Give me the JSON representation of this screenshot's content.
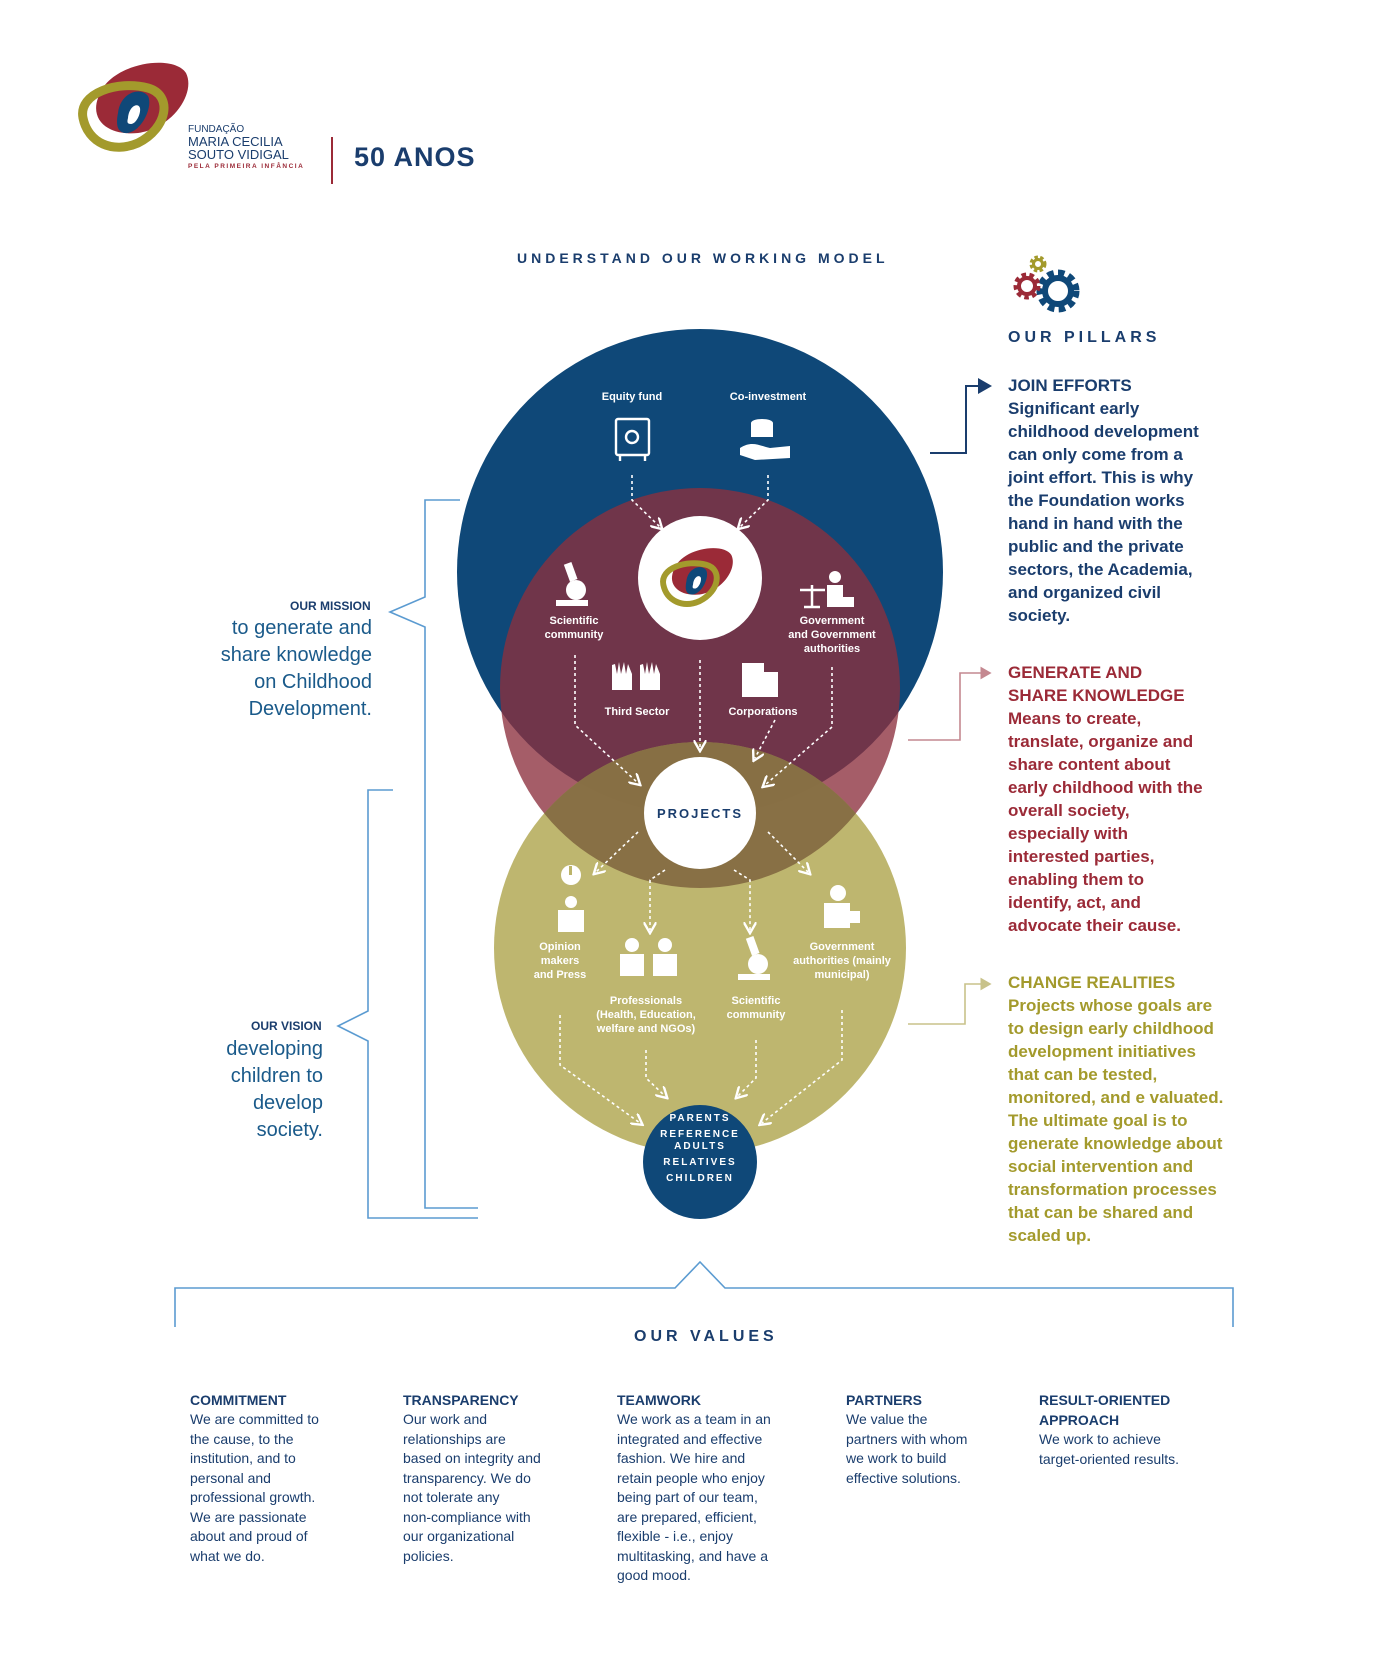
{
  "header": {
    "org_line1": "FUNDAÇÃO",
    "org_line2": "MARIA CECILIA",
    "org_line3": "SOUTO VIDIGAL",
    "org_tagline": "PELA PRIMEIRA INFÂNCIA",
    "anniversary": "50 ANOS"
  },
  "diagram": {
    "title": "UNDERSTAND OUR WORKING MODEL",
    "top_nodes": [
      "Equity fund",
      "Co-investment"
    ],
    "middle_nodes": {
      "scientific": [
        "Scientific",
        "community"
      ],
      "government": [
        "Government",
        "and Government",
        "authorities"
      ],
      "third_sector": "Third Sector",
      "corporations": "Corporations"
    },
    "center": "PROJECTS",
    "bottom_nodes": {
      "opinion": [
        "Opinion",
        "makers",
        "and Press"
      ],
      "professionals": [
        "Professionals",
        "(Health, Education,",
        "welfare and NGOs)"
      ],
      "scientific": [
        "Scientific",
        "community"
      ],
      "government": [
        "Government",
        "authorities (mainly",
        "municipal)"
      ]
    },
    "beneficiaries": [
      "PARENTS",
      "REFERENCE",
      "ADULTS",
      "RELATIVES",
      "CHILDREN"
    ]
  },
  "mission": {
    "heading": "OUR MISSION",
    "text": [
      "to generate and",
      "share knowledge",
      "on Childhood",
      "Development."
    ]
  },
  "vision": {
    "heading": "OUR VISION",
    "text": [
      "developing",
      "children to",
      "develop",
      "society."
    ]
  },
  "pillars": {
    "heading": "OUR PILLARS",
    "items": [
      {
        "title": "JOIN EFFORTS",
        "color": "#1a3d6d",
        "lines": [
          "Significant early",
          "childhood development",
          "can only come from a",
          "joint effort. This is why",
          "the Foundation works",
          "hand in hand with the",
          "public and the private",
          "sectors, the Academia,",
          "and organized civil",
          "society."
        ]
      },
      {
        "title": "GENERATE AND",
        "title2": "SHARE KNOWLEDGE",
        "color": "#9b2a37",
        "lines": [
          "Means to create,",
          "translate, organize and",
          "share content about",
          "early childhood with the",
          "overall society,",
          "especially with",
          "interested parties,",
          "enabling them to",
          "identify, act, and",
          "advocate their cause."
        ]
      },
      {
        "title": "CHANGE REALITIES",
        "color": "#a39a2c",
        "lines": [
          "Projects whose goals are",
          "to design early childhood",
          "development initiatives",
          "that can be tested,",
          "monitored, and e  valuated.",
          "The ultimate goal is to",
          "generate knowledge about",
          "social intervention and",
          "transformation processes",
          "that can be shared and",
          "scaled up."
        ]
      }
    ]
  },
  "values": {
    "heading": "OUR VALUES",
    "items": [
      {
        "title": [
          "COMMITMENT"
        ],
        "lines": [
          "We are committed to",
          "the cause, to the",
          "institution, and to",
          "personal and",
          "professional growth.",
          "We are passionate",
          "about and proud of",
          "what we do."
        ]
      },
      {
        "title": [
          "TRANSPARENCY"
        ],
        "lines": [
          "Our work and",
          "relationships are",
          "based on integrity and",
          "transparency. We do",
          "not tolerate any",
          "non-compliance with",
          "our organizational",
          "policies."
        ]
      },
      {
        "title": [
          "TEAMWORK"
        ],
        "lines": [
          "We work as a team in an",
          "integrated and effective",
          "fashion. We hire and",
          "retain people who enjoy",
          "being part of our team,",
          "are prepared, efficient,",
          "flexible - i.e., enjoy",
          "multitasking, and have a",
          "good mood."
        ]
      },
      {
        "title": [
          "PARTNERS"
        ],
        "lines": [
          "We value the",
          "partners with whom",
          "we work to build",
          "effective solutions."
        ]
      },
      {
        "title": [
          "RESULT-ORIENTED",
          "APPROACH"
        ],
        "lines": [
          "We work to achieve",
          "target-oriented results."
        ]
      }
    ]
  },
  "colors": {
    "blue": "#0f4878",
    "red": "#8c2f3e",
    "olive": "#bcb46a",
    "navy": "#1a3d6d"
  }
}
